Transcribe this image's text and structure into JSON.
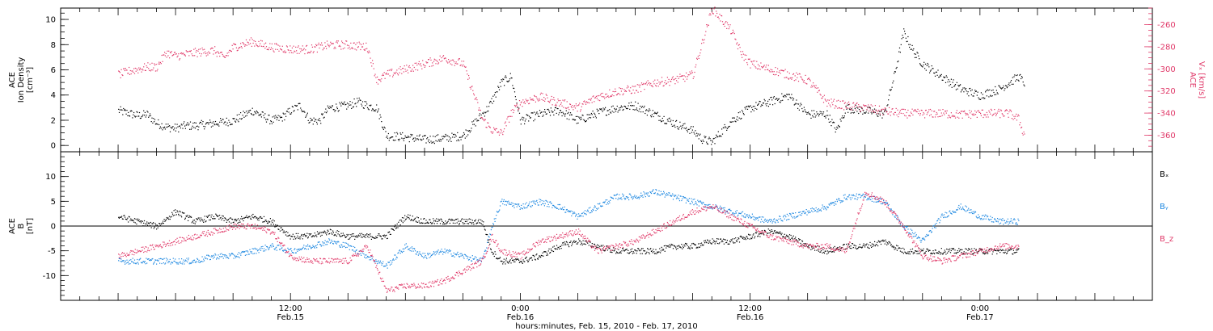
{
  "chart_data": [
    {
      "type": "scatter",
      "panel": "top",
      "ylabel_left": [
        "ACE",
        "Ion Density",
        "[cm⁻³]"
      ],
      "ylabel_right": [
        "ACE",
        "Vₓ [km/s]"
      ],
      "ylim_left": [
        -0.5,
        10.9
      ],
      "ylim_right": [
        -375,
        -245
      ],
      "yticks_left": [
        0,
        2,
        4,
        6,
        8,
        10
      ],
      "yticks_right": [
        -360,
        -340,
        -320,
        -300,
        -280,
        -260
      ],
      "series": [
        {
          "axis": "left",
          "color": "#000000",
          "x": [
            3,
            3.5,
            4,
            4.5,
            5,
            5.5,
            6,
            6.5,
            7,
            8,
            9,
            10,
            11,
            11.5,
            12,
            12.5,
            13,
            13.5,
            14,
            15,
            15.5,
            16,
            16.5,
            17,
            18,
            19,
            20,
            21,
            22,
            22.3,
            23,
            23.5,
            24,
            25,
            26,
            27,
            28,
            29,
            30,
            31,
            32,
            33,
            33.5,
            34,
            35,
            36,
            37,
            38,
            39,
            40,
            40.5,
            41,
            42,
            43,
            43.5,
            44,
            44.5,
            45,
            46,
            47,
            48,
            49,
            49.5,
            50,
            50.3
          ],
          "y": [
            2.8,
            2.6,
            2.4,
            2.5,
            1.8,
            1.5,
            1.4,
            1.6,
            1.6,
            1.8,
            2.0,
            2.8,
            2.0,
            2.2,
            2.8,
            3.2,
            2.0,
            2.0,
            3.0,
            3.2,
            3.5,
            3.2,
            3.0,
            0.8,
            0.7,
            0.5,
            0.6,
            0.8,
            2.5,
            3.0,
            5.0,
            5.5,
            2.0,
            2.5,
            2.8,
            2.0,
            2.6,
            3.0,
            3.2,
            2.5,
            1.8,
            1.2,
            0.5,
            0.3,
            2.0,
            3.0,
            3.5,
            4.0,
            2.5,
            2.5,
            1.2,
            3.0,
            2.8,
            2.5,
            5.5,
            9.0,
            7.5,
            6.5,
            5.5,
            4.5,
            4.0,
            4.5,
            5.0,
            5.5,
            5.0
          ]
        },
        {
          "axis": "right",
          "color": "#e03868",
          "x": [
            3,
            3.5,
            4,
            4.5,
            5,
            5.5,
            6,
            7,
            8,
            8.5,
            9,
            10,
            10.5,
            11,
            12,
            13,
            14,
            15,
            16,
            16.5,
            17,
            18,
            19,
            20,
            21,
            21.5,
            22,
            22.5,
            23,
            23.5,
            24,
            25,
            26,
            27,
            28,
            29,
            30,
            31,
            32,
            33,
            34,
            35,
            35.5,
            36,
            37,
            38,
            39,
            40,
            41,
            42,
            43,
            44,
            45,
            46,
            47,
            48,
            49,
            49.5,
            50,
            50.3
          ],
          "y": [
            -305,
            -302,
            -300,
            -298,
            -298,
            -285,
            -288,
            -285,
            -283,
            -290,
            -280,
            -275,
            -278,
            -280,
            -282,
            -282,
            -278,
            -278,
            -280,
            -310,
            -305,
            -300,
            -295,
            -290,
            -295,
            -320,
            -345,
            -355,
            -358,
            -340,
            -330,
            -325,
            -330,
            -335,
            -325,
            -320,
            -318,
            -312,
            -310,
            -305,
            -245,
            -265,
            -285,
            -295,
            -300,
            -305,
            -310,
            -330,
            -333,
            -335,
            -338,
            -340,
            -340,
            -340,
            -341,
            -340,
            -340,
            -340,
            -345,
            -360
          ]
        }
      ]
    },
    {
      "type": "scatter",
      "panel": "bottom",
      "ylabel_left": [
        "ACE",
        "B",
        "[nT]"
      ],
      "ylim": [
        -15,
        15
      ],
      "yticks": [
        -10,
        -5,
        0,
        5,
        10
      ],
      "series": [
        {
          "name": "Bₓ",
          "color": "#000000",
          "x": [
            3,
            4,
            5,
            6,
            7,
            8,
            9,
            10,
            11,
            12,
            13,
            14,
            15,
            16,
            17,
            18,
            19,
            20,
            21,
            22,
            22.5,
            23,
            24,
            25,
            26,
            27,
            28,
            29,
            30,
            31,
            32,
            33,
            34,
            35,
            36,
            37,
            38,
            39,
            40,
            41,
            42,
            43,
            44,
            45,
            46,
            47,
            48,
            49,
            50
          ],
          "y": [
            2,
            1,
            0,
            3,
            1,
            2,
            1,
            2,
            1,
            -2,
            -2,
            -1,
            -2,
            -2,
            -2,
            2,
            1,
            1,
            1,
            1,
            -5,
            -7,
            -7,
            -6,
            -4,
            -3,
            -4,
            -5,
            -5,
            -5,
            -4,
            -4,
            -3,
            -3,
            -2,
            -1,
            -2,
            -4,
            -5,
            -4,
            -4,
            -3,
            -5,
            -5,
            -5,
            -5,
            -5,
            -5,
            -5
          ]
        },
        {
          "name": "Bᵧ",
          "color": "#1a86e0",
          "x": [
            3,
            4,
            5,
            6,
            7,
            8,
            9,
            10,
            11,
            12,
            13,
            14,
            15,
            16,
            17,
            18,
            19,
            20,
            21,
            22,
            22.5,
            23,
            24,
            25,
            26,
            27,
            28,
            29,
            30,
            31,
            32,
            33,
            34,
            35,
            36,
            37,
            38,
            39,
            40,
            41,
            42,
            43,
            44,
            45,
            46,
            47,
            48,
            49,
            50
          ],
          "y": [
            -7,
            -7,
            -7,
            -7,
            -7,
            -6,
            -6,
            -5,
            -4,
            -5,
            -4,
            -3,
            -4,
            -6,
            -8,
            -4,
            -6,
            -5,
            -6,
            -7,
            0,
            5,
            4,
            5,
            4,
            2,
            4,
            6,
            6,
            7,
            6,
            5,
            4,
            3,
            2,
            1,
            2,
            3,
            4,
            6,
            6,
            5,
            0,
            -3,
            2,
            4,
            2,
            1,
            1
          ]
        },
        {
          "name": "B_z",
          "color": "#e03868",
          "x": [
            3,
            4,
            5,
            6,
            7,
            8,
            9,
            10,
            11,
            12,
            13,
            14,
            15,
            16,
            17,
            18,
            19,
            20,
            21,
            22,
            22.5,
            23,
            24,
            25,
            26,
            27,
            28,
            29,
            30,
            31,
            32,
            33,
            34,
            35,
            36,
            37,
            38,
            39,
            40,
            41,
            42,
            43,
            44,
            45,
            46,
            47,
            48,
            49,
            50
          ],
          "y": [
            -6,
            -5,
            -4,
            -3,
            -2,
            -1,
            0,
            0,
            -1,
            -6,
            -7,
            -7,
            -7,
            -4,
            -13,
            -12,
            -12,
            -11,
            -9,
            -7,
            -2,
            -5,
            -6,
            -3,
            -2,
            -1,
            -5,
            -4,
            -3,
            -1,
            1,
            3,
            4,
            2,
            0,
            -2,
            -3,
            -4,
            -4,
            -5,
            7,
            5,
            0,
            -6,
            -7,
            -6,
            -5,
            -4,
            -4
          ]
        }
      ]
    }
  ],
  "x_axis": {
    "xlim_hours": [
      0,
      57
    ],
    "ticks": [
      {
        "hour": 12,
        "time": "12:00",
        "date": "Feb.15"
      },
      {
        "hour": 24,
        "time": "0:00",
        "date": "Feb.16"
      },
      {
        "hour": 36,
        "time": "12:00",
        "date": "Feb.16"
      },
      {
        "hour": 48,
        "time": "0:00",
        "date": "Feb.17"
      }
    ],
    "title": "hours:minutes, Feb. 15, 2010 - Feb. 17, 2010"
  }
}
